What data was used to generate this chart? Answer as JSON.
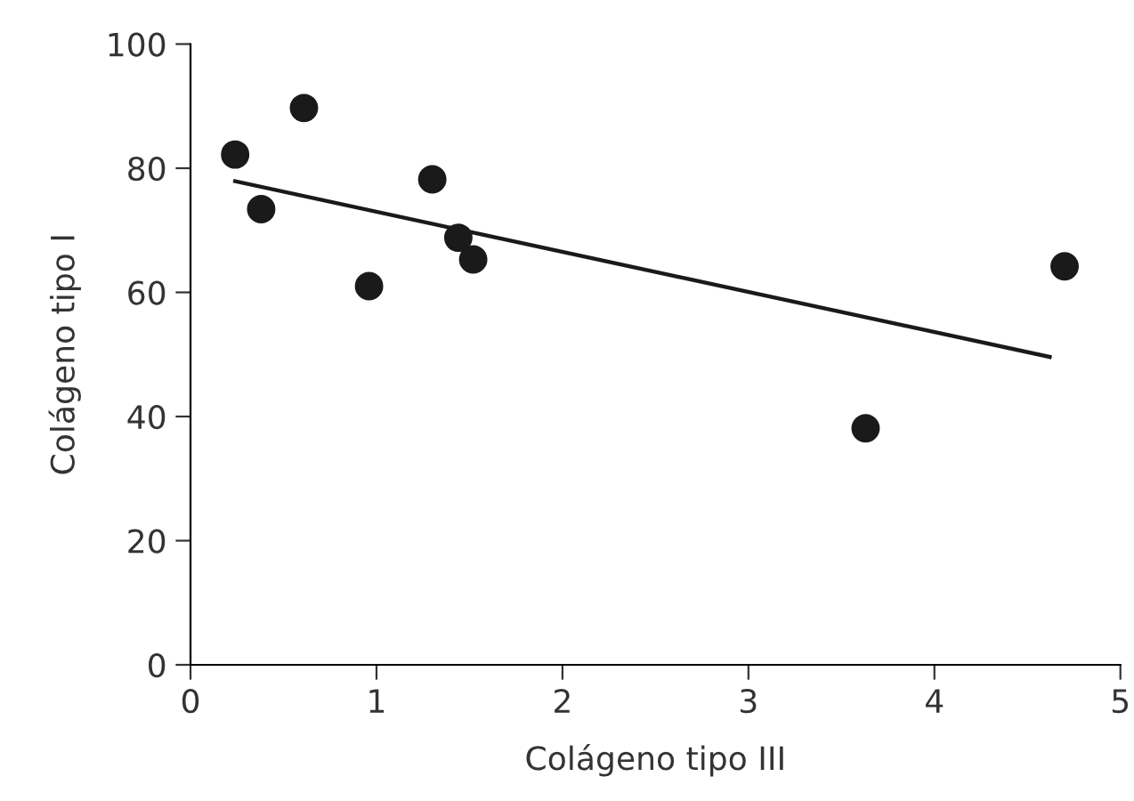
{
  "chart_data": {
    "type": "scatter",
    "xlabel": "Colágeno tipo III",
    "ylabel": "Colágeno tipo I",
    "x": [
      0.24,
      0.38,
      0.61,
      0.96,
      1.3,
      1.44,
      1.52,
      3.63,
      4.7
    ],
    "values": [
      82.2,
      73.4,
      89.7,
      61.0,
      78.2,
      68.8,
      65.3,
      38.1,
      64.2
    ],
    "color": "#1a1a1a",
    "marker": "circle",
    "series": [
      {
        "type": "line",
        "x": [
          0.24,
          4.62
        ],
        "values": [
          77.9,
          49.6
        ],
        "color": "#1a1a1a",
        "line_style": "solid",
        "marker": "none"
      }
    ],
    "xlim": [
      0,
      5
    ],
    "ylim": [
      0,
      100
    ],
    "xticks": [
      0,
      1,
      2,
      3,
      4,
      5
    ],
    "yticks": [
      0,
      20,
      40,
      60,
      80,
      100
    ],
    "grid": false,
    "legend": false
  }
}
